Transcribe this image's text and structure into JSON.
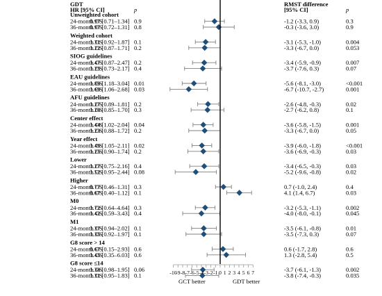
{
  "header": {
    "group_title": "GDT",
    "hr_label": "HR [95% CI]",
    "p_label": "p",
    "rmst_title": "RMST difference",
    "rmst_ci_label": "[95% CI]",
    "rmst_p_label": "p"
  },
  "colors": {
    "marker": "#1f4e79",
    "ci_line": "#7f7f7f",
    "axis": "#000000"
  },
  "chart_data": {
    "type": "forest",
    "xlabel_left": "GCT better",
    "xlabel_right": "GDT better",
    "xlim": [
      -10,
      7
    ],
    "x_ticks": [
      -10,
      -9,
      -8,
      -7,
      -6,
      -5,
      -4,
      -3,
      -2,
      -1,
      0,
      1,
      2,
      3,
      4,
      5,
      6,
      7
    ],
    "reference_line": 0,
    "groups": [
      {
        "title": "Unweighted cohort",
        "rows": [
          {
            "label": "24-month OS",
            "hr": "0.97 [0.71–1.34]",
            "p": "0.9",
            "rmst": "-1.2 (-3.3, 0.9)",
            "rmst_p": "0.3",
            "est": -1.2,
            "lo": -3.3,
            "hi": 0.9
          },
          {
            "label": "36-month OS",
            "hr": "0.97 [0.72–1.31]",
            "p": "0.8",
            "rmst": "-0.3 (-3.6, 3.0)",
            "rmst_p": "0.9",
            "est": -0.3,
            "lo": -3.6,
            "hi": 3.0
          }
        ]
      },
      {
        "title": "Weighted cohort",
        "rows": [
          {
            "label": "24-month OS",
            "hr": "1.31 [0.92–1.87]",
            "p": "0.1",
            "rmst": "-3.1 (-5.3, -1.0)",
            "rmst_p": "0.004",
            "est": -3.1,
            "lo": -5.3,
            "hi": -1.0
          },
          {
            "label": "36-month OS",
            "hr": "1.22 [0.87–1.71]",
            "p": "0.2",
            "rmst": "-3.3 (-6.7, 0.0)",
            "rmst_p": "0.053",
            "est": -3.3,
            "lo": -6.7,
            "hi": 0.0
          }
        ]
      },
      {
        "title": "SIOG guidelines",
        "rows": [
          {
            "label": "24-month OS",
            "hr": "1.47 [0.87–2.47]",
            "p": "0.2",
            "rmst": "-3.4 (-5.9, -0.9)",
            "rmst_p": "0.007",
            "est": -3.4,
            "lo": -5.9,
            "hi": -0.9
          },
          {
            "label": "36-month OS",
            "hr": "1.25 [0.73–2.17]",
            "p": "0.4",
            "rmst": "-3.7 (-7.6, 0.3)",
            "rmst_p": "0.07",
            "est": -3.7,
            "lo": -7.6,
            "hi": 0.3
          }
        ]
      },
      {
        "title": "EAU guidelines",
        "rows": [
          {
            "label": "24-month OS",
            "hr": "1.89 [1.18–3.04]",
            "p": "0.01",
            "rmst": "-5.6 (-8.1, -3.0)",
            "rmst_p": "<0.001",
            "est": -5.6,
            "lo": -8.1,
            "hi": -3.0
          },
          {
            "label": "36-month OS",
            "hr": "1.69 [1.06–2.68]",
            "p": "0.03",
            "rmst": "-6.7 (-10.7, -2.7)",
            "rmst_p": "0.001",
            "est": -6.7,
            "lo": -10.7,
            "hi": -2.7
          }
        ]
      },
      {
        "title": "AFU guidelines",
        "rows": [
          {
            "label": "24-month OS",
            "hr": "1.27 [0.89–1.81]",
            "p": "0.2",
            "rmst": "-2.6 (-4.8, -0.3)",
            "rmst_p": "0.02",
            "est": -2.6,
            "lo": -4.8,
            "hi": -0.3
          },
          {
            "label": "36-month OS",
            "hr": "1.20 [0.85–1.70]",
            "p": "0.3",
            "rmst": "-2.7 (-6.2, 0.8)",
            "rmst_p": "0.1",
            "est": -2.7,
            "lo": -6.2,
            "hi": 0.8
          }
        ]
      },
      {
        "title": "Center effect",
        "rows": [
          {
            "label": "24-month OS",
            "hr": "1.44 [1.02–2.04]",
            "p": "0.04",
            "rmst": "-3.6 (-5.8, -1.5)",
            "rmst_p": "0.001",
            "est": -3.6,
            "lo": -5.8,
            "hi": -1.5
          },
          {
            "label": "36-month OS",
            "hr": "1.23 [0.88–1.72]",
            "p": "0.2",
            "rmst": "-3.3 (-6.7, 0.0)",
            "rmst_p": "0.05",
            "est": -3.3,
            "lo": -6.7,
            "hi": 0.0
          }
        ]
      },
      {
        "title": "Year effect",
        "rows": [
          {
            "label": "24-month OS",
            "hr": "1.49 [1.05–2.11]",
            "p": "0.02",
            "rmst": "-3.9 (-6.0, -1.8)",
            "rmst_p": "<0.001",
            "est": -3.9,
            "lo": -6.0,
            "hi": -1.8
          },
          {
            "label": "36-month OS",
            "hr": "1.25 [0.90–1.74]",
            "p": "0.2",
            "rmst": "-3.6 (-6.9, -0.3)",
            "rmst_p": "0.03",
            "est": -3.6,
            "lo": -6.9,
            "hi": -0.3
          }
        ]
      },
      {
        "title": "Lower",
        "rows": [
          {
            "label": "24-month OS",
            "hr": "1.27 [0.75–2.16]",
            "p": "0.4",
            "rmst": "-3.4 (-6.5, -0.3)",
            "rmst_p": "0.03",
            "est": -3.4,
            "lo": -6.5,
            "hi": -0.3
          },
          {
            "label": "36-month OS",
            "hr": "1.52 [0.95–2.44]",
            "p": "0.08",
            "rmst": "-5.2 (-9.6, -0.8)",
            "rmst_p": "0.02",
            "est": -5.2,
            "lo": -9.6,
            "hi": -0.8
          }
        ]
      },
      {
        "title": "Higher",
        "rows": [
          {
            "label": "24-month OS",
            "hr": "0.77 [0.46–1.31]",
            "p": "0.3",
            "rmst": "0.7 (-1.0, 2.4)",
            "rmst_p": "0.4",
            "est": 0.7,
            "lo": -1.0,
            "hi": 2.4
          },
          {
            "label": "36-month OS",
            "hr": "0.67 [0.40–1.12]",
            "p": "0.1",
            "rmst": "4.1 (1.4, 6.7)",
            "rmst_p": "0.03",
            "est": 4.1,
            "lo": 1.4,
            "hi": 6.7
          }
        ]
      },
      {
        "title": "M0",
        "rows": [
          {
            "label": "24-month OS",
            "hr": "1.72 [0.64–4.64]",
            "p": "0.3",
            "rmst": "-3.2 (-5.3, -1.1)",
            "rmst_p": "0.002",
            "est": -3.2,
            "lo": -5.3,
            "hi": -1.1
          },
          {
            "label": "36-month OS",
            "hr": "1.42 [0.59–3.43]",
            "p": "0.4",
            "rmst": "-4.0 (-8.0, -0.1)",
            "rmst_p": "0.045",
            "est": -4.0,
            "lo": -8.0,
            "hi": -0.1
          }
        ]
      },
      {
        "title": "M1",
        "rows": [
          {
            "label": "24-month OS",
            "hr": "1.37 [0.94–2.02]",
            "p": "0.1",
            "rmst": "-3.5 (-6.1, -0.8)",
            "rmst_p": "0.01",
            "est": -3.5,
            "lo": -6.1,
            "hi": -0.8
          },
          {
            "label": "36-month OS",
            "hr": "1.35 [0.92–1.97]",
            "p": "0.1",
            "rmst": "-3.5 (-7.3, 0.3)",
            "rmst_p": "0.07",
            "est": -3.5,
            "lo": -7.3,
            "hi": 0.3
          }
        ]
      },
      {
        "title": "G8 score > 14",
        "rows": [
          {
            "label": "24-month OS",
            "hr": "0.67 [0.15–2.93]",
            "p": "0.6",
            "rmst": "0.6 (-1.7, 2.8)",
            "rmst_p": "0.6",
            "est": 0.6,
            "lo": -1.7,
            "hi": 2.8
          },
          {
            "label": "36-month OS",
            "hr": "1.45 [0.35–6.03]",
            "p": "0.6",
            "rmst": "1.3 (-2.8, 5.4)",
            "rmst_p": "0.5",
            "est": 1.3,
            "lo": -2.8,
            "hi": 5.4
          }
        ]
      },
      {
        "title": "G8 score ≤14",
        "rows": [
          {
            "label": "24-month OS",
            "hr": "1.38 [0.98–1.95]",
            "p": "0.06",
            "rmst": "-3.7 (-6.1, -1.3)",
            "rmst_p": "0.002",
            "est": -3.7,
            "lo": -6.1,
            "hi": -1.3
          },
          {
            "label": "36-month OS",
            "hr": "1.31 [0.95–1.83]",
            "p": "0.1",
            "rmst": "-3.8 (-7.4, -0.3)",
            "rmst_p": "0.035",
            "est": -3.8,
            "lo": -7.4,
            "hi": -0.3
          }
        ]
      }
    ]
  }
}
